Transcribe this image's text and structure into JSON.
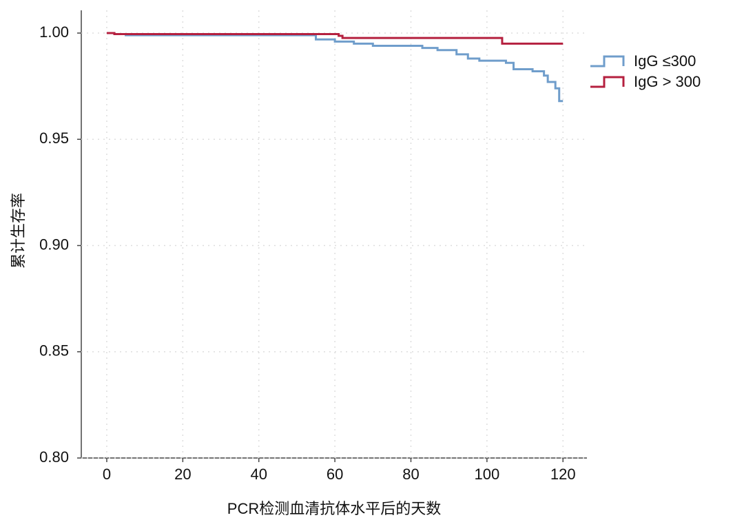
{
  "chart_data": {
    "type": "line",
    "step": true,
    "xlabel": "PCR检测血清抗体水平后的天数",
    "ylabel": "累计生存率",
    "xlim": [
      -6.7,
      126.3
    ],
    "ylim": [
      0.8,
      1.0107
    ],
    "xticks": [
      0,
      20,
      40,
      60,
      80,
      100,
      120
    ],
    "yticks": [
      {
        "value": 0.8,
        "label": "0.80"
      },
      0.85,
      {
        "value": 0.9,
        "label": "0.90"
      },
      0.95,
      {
        "value": 1,
        "label": "1.00"
      }
    ],
    "grid": true,
    "legend": "right",
    "series": [
      {
        "name": "IgG ≤300",
        "color": "#6f9dcb",
        "x": [
          0,
          2,
          5,
          40,
          55,
          60,
          65,
          70,
          83,
          87,
          92,
          95,
          98,
          105,
          107,
          112,
          115,
          116,
          118,
          119,
          120
        ],
        "values": [
          1.0,
          0.9995,
          0.999,
          0.999,
          0.997,
          0.996,
          0.995,
          0.994,
          0.993,
          0.992,
          0.99,
          0.988,
          0.987,
          0.986,
          0.983,
          0.982,
          0.98,
          0.977,
          0.974,
          0.968,
          0.968
        ]
      },
      {
        "name": "IgG > 300",
        "color": "#b5203f",
        "x": [
          0,
          2,
          61,
          62,
          104,
          120
        ],
        "values": [
          1.0,
          0.9995,
          0.9987,
          0.9977,
          0.995,
          0.995
        ]
      }
    ]
  }
}
